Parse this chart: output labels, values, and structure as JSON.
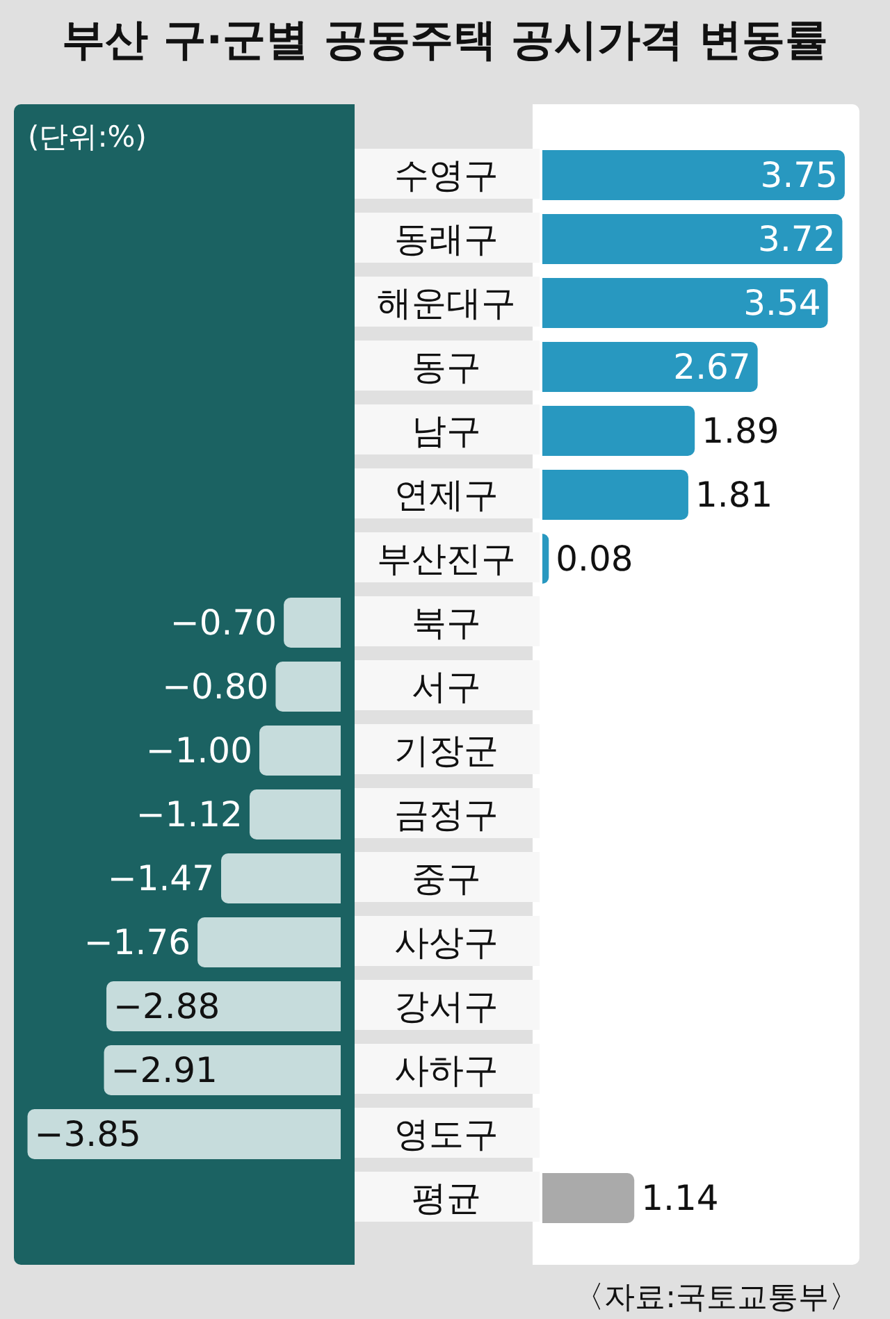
{
  "chart_data": [
    {
      "type": "bar",
      "orientation": "horizontal",
      "title": "부산 구·군별 공동주택 공시가격 변동률",
      "categories": [
        null,
        null,
        null,
        null,
        null,
        null,
        null,
        "북구",
        "서구",
        "기장군",
        "금정구",
        "중구",
        "사상구",
        "강서구",
        "사하구",
        "영도구",
        null
      ],
      "values": [
        null,
        null,
        null,
        null,
        null,
        null,
        null,
        -0.7,
        -0.8,
        -1.0,
        -1.12,
        -1.47,
        -1.76,
        -2.88,
        -2.91,
        -3.85,
        null
      ],
      "value_labels": [
        null,
        null,
        null,
        null,
        null,
        null,
        null,
        "−0.70",
        "−0.80",
        "−1.00",
        "−1.12",
        "−1.47",
        "−1.76",
        "−2.88",
        "−2.91",
        "−3.85",
        null
      ],
      "color": "#c6dcdc",
      "tick_labels": "y",
      "annotations": [
        "(단위:%)"
      ]
    },
    {
      "type": "bar",
      "orientation": "horizontal",
      "categories": [
        "수영구",
        "동래구",
        "해운대구",
        "동구",
        "남구",
        "연제구",
        "부산진구",
        null,
        null,
        null,
        null,
        null,
        null,
        null,
        null,
        null,
        "평균"
      ],
      "values": [
        3.75,
        3.72,
        3.54,
        2.67,
        1.89,
        1.81,
        0.08,
        null,
        null,
        null,
        null,
        null,
        null,
        null,
        null,
        null,
        1.14
      ],
      "value_labels": [
        "3.75",
        "3.72",
        "3.54",
        "2.67",
        "1.89",
        "1.81",
        "0.08",
        null,
        null,
        null,
        null,
        null,
        null,
        null,
        null,
        null,
        "1.14"
      ],
      "colors": [
        "#2898c0",
        "#2898c0",
        "#2898c0",
        "#2898c0",
        "#2898c0",
        "#2898c0",
        "#2898c0",
        null,
        null,
        null,
        null,
        null,
        null,
        null,
        null,
        null,
        "#aaaaaa"
      ],
      "tick_labels": "y",
      "annotations": [
        "〈자료:국토교통부〉"
      ]
    }
  ]
}
